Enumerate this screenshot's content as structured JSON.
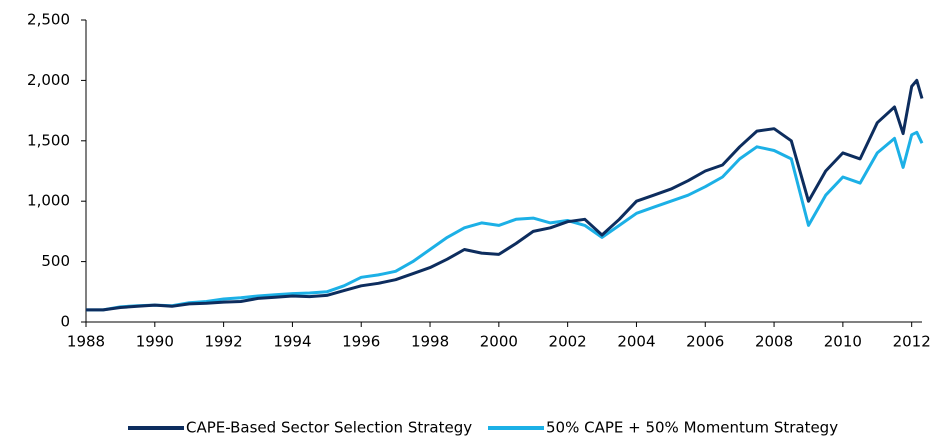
{
  "chart_data": {
    "type": "line",
    "x": [
      1988,
      1988.5,
      1989,
      1989.5,
      1990,
      1990.5,
      1991,
      1991.5,
      1992,
      1992.5,
      1993,
      1993.5,
      1994,
      1994.5,
      1995,
      1995.5,
      1996,
      1996.5,
      1997,
      1997.5,
      1998,
      1998.5,
      1999,
      1999.5,
      2000,
      2000.5,
      2001,
      2001.5,
      2002,
      2002.5,
      2003,
      2003.5,
      2004,
      2004.5,
      2005,
      2005.5,
      2006,
      2006.5,
      2007,
      2007.5,
      2008,
      2008.5,
      2009,
      2009.5,
      2010,
      2010.5,
      2011,
      2011.5,
      2011.75,
      2012,
      2012.15,
      2012.3
    ],
    "series": [
      {
        "name": "CAPE-Based Sector Selection Strategy",
        "color": "#0d2d5e",
        "values": [
          100,
          100,
          120,
          130,
          140,
          130,
          150,
          155,
          165,
          170,
          195,
          205,
          215,
          210,
          220,
          260,
          300,
          320,
          350,
          400,
          450,
          520,
          600,
          570,
          560,
          650,
          750,
          780,
          830,
          850,
          720,
          850,
          1000,
          1050,
          1100,
          1170,
          1250,
          1300,
          1450,
          1580,
          1600,
          1500,
          1000,
          1250,
          1400,
          1350,
          1650,
          1780,
          1560,
          1950,
          2000,
          1850
        ]
      },
      {
        "name": "50% CAPE + 50% Momentum Strategy",
        "color": "#1cb0e6",
        "values": [
          100,
          100,
          125,
          135,
          140,
          135,
          160,
          170,
          190,
          200,
          215,
          225,
          235,
          240,
          250,
          300,
          370,
          390,
          420,
          500,
          600,
          700,
          780,
          820,
          800,
          850,
          860,
          820,
          840,
          800,
          700,
          800,
          900,
          950,
          1000,
          1050,
          1120,
          1200,
          1350,
          1450,
          1420,
          1350,
          800,
          1050,
          1200,
          1150,
          1400,
          1520,
          1280,
          1550,
          1570,
          1480
        ]
      }
    ],
    "xlim": [
      1988,
      2012.3
    ],
    "xticks": [
      1988,
      1990,
      1992,
      1994,
      1996,
      1998,
      2000,
      2002,
      2004,
      2006,
      2008,
      2010,
      2012
    ],
    "ylim": [
      0,
      2500
    ],
    "yticks": [
      0,
      500,
      {
        "value": 1000,
        "label": "1,000"
      },
      {
        "value": 1500,
        "label": "1,500"
      },
      {
        "value": 2000,
        "label": "2,000"
      },
      {
        "value": 2500,
        "label": "2,500"
      }
    ],
    "legend": "bottom"
  }
}
